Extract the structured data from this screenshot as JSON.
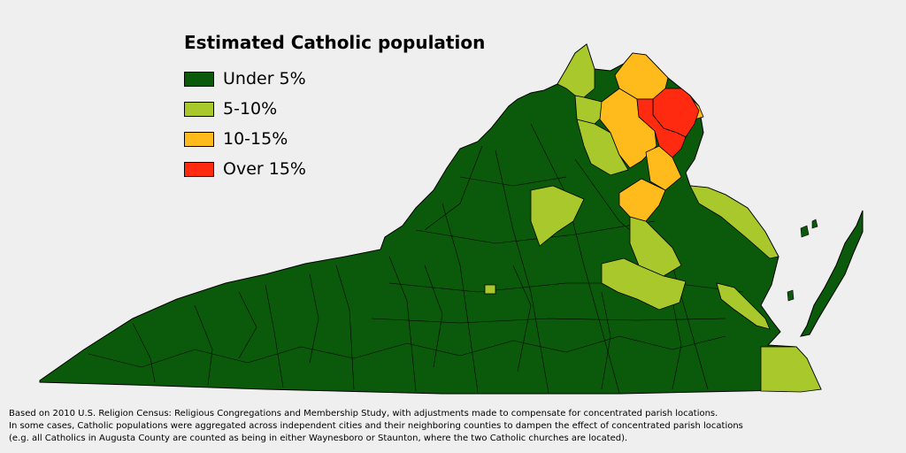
{
  "legend": {
    "title": "Estimated Catholic population",
    "items": [
      {
        "label": "Under 5%",
        "color": "#0b5a0b"
      },
      {
        "label": "5-10%",
        "color": "#a8c82c"
      },
      {
        "label": "10-15%",
        "color": "#ffbb1c"
      },
      {
        "label": "Over 15%",
        "color": "#ff2a10"
      }
    ]
  },
  "footnote": {
    "line1": "Based on 2010 U.S. Religion Census: Religious Congregations and Membership Study, with adjustments made to compensate for concentrated parish locations.",
    "line2": "In some cases, Catholic populations were aggregated across independent cities and their neighboring counties to dampen the effect of concentrated parish locations",
    "line3": "(e.g. all Catholics in Augusta County are counted as being in either Waynesboro or Staunton, where the two Catholic churches are located)."
  },
  "colors": {
    "background": "#efefef",
    "border": "#000000",
    "under5": "#0b5a0b",
    "5to10": "#a8c82c",
    "10to15": "#ffbb1c",
    "over15": "#ff2a10"
  }
}
